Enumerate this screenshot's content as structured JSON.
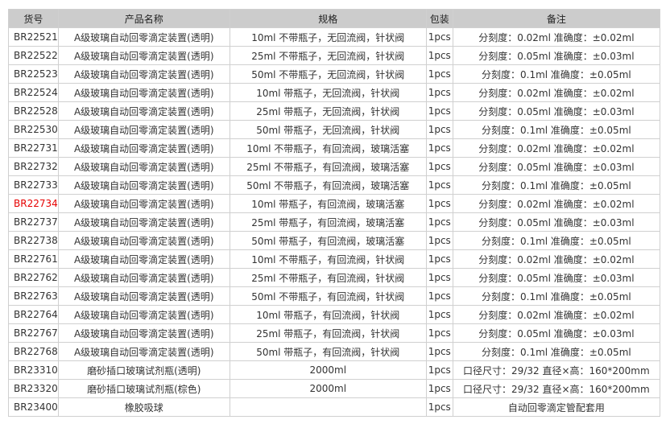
{
  "headers": [
    "货号",
    "产品名称",
    "规格",
    "包装",
    "备注"
  ],
  "highlight_color": "#e60000",
  "rows": [
    {
      "id": "BR22521",
      "name": "A级玻璃自动回零滴定装置(透明)",
      "spec": "10ml 不带瓶子，无回流阀，针状阀",
      "pack": "1pcs",
      "note": "分刻度：0.02ml 准确度：±0.02ml"
    },
    {
      "id": "BR22522",
      "name": "A级玻璃自动回零滴定装置(透明)",
      "spec": "25ml 不带瓶子，无回流阀，针状阀",
      "pack": "1pcs",
      "note": "分刻度：0.05ml 准确度：±0.03ml"
    },
    {
      "id": "BR22523",
      "name": "A级玻璃自动回零滴定装置(透明)",
      "spec": "50ml 不带瓶子，无回流阀，针状阀",
      "pack": "1pcs",
      "note": "分刻度：0.1ml 准确度：±0.05ml"
    },
    {
      "id": "BR22524",
      "name": "A级玻璃自动回零滴定装置(透明)",
      "spec": "10ml 带瓶子，无回流阀，针状阀",
      "pack": "1pcs",
      "note": "分刻度：0.02ml 准确度：±0.02ml"
    },
    {
      "id": "BR22528",
      "name": "A级玻璃自动回零滴定装置(透明)",
      "spec": "25ml 带瓶子，无回流阀，针状阀",
      "pack": "1pcs",
      "note": "分刻度：0.05ml 准确度：±0.03ml"
    },
    {
      "id": "BR22530",
      "name": "A级玻璃自动回零滴定装置(透明)",
      "spec": "50ml 带瓶子，无回流阀，针状阀",
      "pack": "1pcs",
      "note": "分刻度：0.1ml 准确度：±0.05ml"
    },
    {
      "id": "BR22731",
      "name": "A级玻璃自动回零滴定装置(透明)",
      "spec": "10ml 不带瓶子，有回流阀，玻璃活塞",
      "pack": "1pcs",
      "note": "分刻度：0.02ml 准确度：±0.02ml"
    },
    {
      "id": "BR22732",
      "name": "A级玻璃自动回零滴定装置(透明)",
      "spec": "25ml 不带瓶子，有回流阀，玻璃活塞",
      "pack": "1pcs",
      "note": "分刻度：0.05ml 准确度：±0.03ml"
    },
    {
      "id": "BR22733",
      "name": "A级玻璃自动回零滴定装置(透明)",
      "spec": "50ml 不带瓶子，有回流阀，玻璃活塞",
      "pack": "1pcs",
      "note": "分刻度：0.1ml 准确度：±0.05ml"
    },
    {
      "id": "BR22734",
      "name": "A级玻璃自动回零滴定装置(透明)",
      "spec": "10ml 带瓶子，有回流阀，玻璃活塞",
      "pack": "1pcs",
      "note": "分刻度：0.02ml 准确度：±0.02ml",
      "highlight": true
    },
    {
      "id": "BR22737",
      "name": "A级玻璃自动回零滴定装置(透明)",
      "spec": "25ml 带瓶子，有回流阀，玻璃活塞",
      "pack": "1pcs",
      "note": "分刻度：0.05ml 准确度：±0.03ml"
    },
    {
      "id": "BR22738",
      "name": "A级玻璃自动回零滴定装置(透明)",
      "spec": "50ml 带瓶子，有回流阀，玻璃活塞",
      "pack": "1pcs",
      "note": "分刻度：0.1ml 准确度：±0.05ml"
    },
    {
      "id": "BR22761",
      "name": "A级玻璃自动回零滴定装置(透明)",
      "spec": "10ml 不带瓶子，有回流阀，针状阀",
      "pack": "1pcs",
      "note": "分刻度：0.02ml 准确度：±0.02ml"
    },
    {
      "id": "BR22762",
      "name": "A级玻璃自动回零滴定装置(透明)",
      "spec": "25ml 不带瓶子，有回流阀，针状阀",
      "pack": "1pcs",
      "note": "分刻度：0.05ml 准确度：±0.03ml"
    },
    {
      "id": "BR22763",
      "name": "A级玻璃自动回零滴定装置(透明)",
      "spec": "50ml 不带瓶子，有回流阀，针状阀",
      "pack": "1pcs",
      "note": "分刻度：0.1ml 准确度：±0.05ml"
    },
    {
      "id": "BR22764",
      "name": "A级玻璃自动回零滴定装置(透明)",
      "spec": "10ml 带瓶子，有回流阀，针状阀",
      "pack": "1pcs",
      "note": "分刻度：0.02ml 准确度：±0.02ml"
    },
    {
      "id": "BR22767",
      "name": "A级玻璃自动回零滴定装置(透明)",
      "spec": "25ml 带瓶子，有回流阀，针状阀",
      "pack": "1pcs",
      "note": "分刻度：0.05ml 准确度：±0.03ml"
    },
    {
      "id": "BR22768",
      "name": "A级玻璃自动回零滴定装置(透明)",
      "spec": "50ml 带瓶子，有回流阀，针状阀",
      "pack": "1pcs",
      "note": "分刻度：0.1ml 准确度：±0.05ml"
    },
    {
      "id": "BR23310",
      "name": "磨砂插口玻璃试剂瓶(透明)",
      "spec": "2000ml",
      "pack": "1pcs",
      "note": "口径尺寸：29/32 直径×高：160*200mm"
    },
    {
      "id": "BR23320",
      "name": "磨砂插口玻璃试剂瓶(棕色)",
      "spec": "2000ml",
      "pack": "1pcs",
      "note": "口径尺寸：29/32 直径×高：160*200mm"
    },
    {
      "id": "BR23400",
      "name": "橡胶吸球",
      "spec": "",
      "pack": "1pcs",
      "note": "自动回零滴定管配套用"
    }
  ]
}
